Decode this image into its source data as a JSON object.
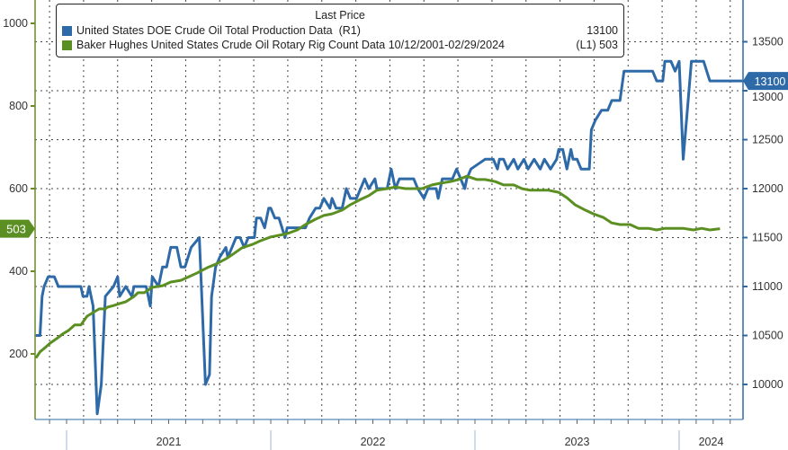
{
  "chart_data": {
    "type": "line",
    "title": "Last Price",
    "x_range": [
      2020.83,
      2024.33
    ],
    "x_tick_labels": [
      "2021",
      "2022",
      "2023",
      "2024"
    ],
    "left_axis": {
      "ticks": [
        200,
        400,
        600,
        800,
        1000
      ],
      "range": [
        100,
        1050
      ]
    },
    "right_axis": {
      "ticks": [
        10000,
        10500,
        11000,
        11500,
        12000,
        12500,
        13000,
        13500
      ],
      "range": [
        9650,
        13950
      ]
    },
    "series": [
      {
        "name": "United States DOE Crude Oil Total Production Data",
        "axis_tag": "(R1)",
        "last_value": "13100",
        "color": "#2e6aa8",
        "axis": "right",
        "x": [
          2020.85,
          2020.87,
          2020.88,
          2020.89,
          2020.91,
          2020.94,
          2020.96,
          2021.07,
          2021.08,
          2021.1,
          2021.11,
          2021.13,
          2021.15,
          2021.17,
          2021.19,
          2021.23,
          2021.25,
          2021.26,
          2021.29,
          2021.32,
          2021.33,
          2021.39,
          2021.41,
          2021.42,
          2021.45,
          2021.47,
          2021.49,
          2021.51,
          2021.54,
          2021.56,
          2021.58,
          2021.61,
          2021.65,
          2021.68,
          2021.7,
          2021.71,
          2021.73,
          2021.75,
          2021.78,
          2021.79,
          2021.81,
          2021.83,
          2021.85,
          2021.87,
          2021.89,
          2021.92,
          2021.93,
          2021.95,
          2021.97,
          2021.99,
          2022.0,
          2022.02,
          2022.04,
          2022.07,
          2022.08,
          2022.17,
          2022.19,
          2022.22,
          2022.24,
          2022.26,
          2022.29,
          2022.3,
          2022.32,
          2022.35,
          2022.37,
          2022.39,
          2022.42,
          2022.44,
          2022.46,
          2022.48,
          2022.51,
          2022.52,
          2022.54,
          2022.57,
          2022.59,
          2022.61,
          2022.63,
          2022.7,
          2022.72,
          2022.75,
          2022.77,
          2022.81,
          2022.82,
          2022.84,
          2022.89,
          2022.91,
          2022.93,
          2022.95,
          2022.96,
          2022.98,
          2023.05,
          2023.09,
          2023.11,
          2023.12,
          2023.14,
          2023.16,
          2023.19,
          2023.21,
          2023.24,
          2023.26,
          2023.29,
          2023.32,
          2023.34,
          2023.37,
          2023.4,
          2023.41,
          2023.43,
          2023.45,
          2023.47,
          2023.48,
          2023.5,
          2023.52,
          2023.56,
          2023.57,
          2023.59,
          2023.62,
          2023.65,
          2023.67,
          2023.71,
          2023.73,
          2023.87,
          2023.89,
          2023.92,
          2023.93,
          2023.96,
          2023.98,
          2024.0,
          2024.02,
          2024.04,
          2024.06,
          2024.12,
          2024.15,
          2024.31
        ],
        "values": [
          10500,
          10500,
          10900,
          11000,
          11100,
          11100,
          11000,
          11000,
          10900,
          10900,
          11000,
          10800,
          9700,
          10000,
          10900,
          11000,
          11100,
          10900,
          11000,
          10900,
          11000,
          11000,
          10800,
          11100,
          11000,
          11200,
          11200,
          11400,
          11400,
          11200,
          11200,
          11400,
          11500,
          10000,
          10100,
          10900,
          11200,
          11300,
          11400,
          11300,
          11400,
          11500,
          11500,
          11400,
          11500,
          11500,
          11700,
          11700,
          11600,
          11800,
          11800,
          11700,
          11700,
          11500,
          11600,
          11600,
          11700,
          11800,
          11800,
          11900,
          11800,
          11900,
          11800,
          11800,
          12000,
          11900,
          11900,
          12000,
          12100,
          12000,
          12100,
          12000,
          12000,
          12000,
          12200,
          12000,
          12100,
          12100,
          12000,
          11900,
          12000,
          12000,
          11900,
          12100,
          12100,
          12200,
          12100,
          12000,
          12100,
          12200,
          12300,
          12300,
          12200,
          12300,
          12300,
          12200,
          12300,
          12200,
          12300,
          12200,
          12300,
          12200,
          12300,
          12200,
          12300,
          12400,
          12400,
          12200,
          12400,
          12300,
          12300,
          12200,
          12200,
          12600,
          12700,
          12800,
          12800,
          12900,
          12900,
          13200,
          13200,
          13100,
          13100,
          13300,
          13300,
          13200,
          13300,
          12300,
          12800,
          13300,
          13300,
          13100,
          13100
        ]
      },
      {
        "name": "Baker Hughes United States Crude Oil Rotary Rig Count Data 10/12/2001-02/29/2024",
        "axis_tag": "(L1)",
        "last_value": "503",
        "color": "#5b8f22",
        "axis": "left",
        "x": [
          2020.85,
          2020.87,
          2020.89,
          2020.92,
          2020.96,
          2020.98,
          2021.01,
          2021.04,
          2021.07,
          2021.1,
          2021.13,
          2021.16,
          2021.19,
          2021.2,
          2021.23,
          2021.26,
          2021.29,
          2021.33,
          2021.35,
          2021.38,
          2021.42,
          2021.47,
          2021.51,
          2021.56,
          2021.6,
          2021.64,
          2021.69,
          2021.73,
          2021.78,
          2021.82,
          2021.86,
          2021.91,
          2021.95,
          2022.0,
          2022.04,
          2022.08,
          2022.13,
          2022.17,
          2022.22,
          2022.26,
          2022.3,
          2022.35,
          2022.39,
          2022.44,
          2022.48,
          2022.52,
          2022.57,
          2022.61,
          2022.66,
          2022.7,
          2022.74,
          2022.79,
          2022.83,
          2022.88,
          2022.92,
          2022.96,
          2023.01,
          2023.05,
          2023.1,
          2023.14,
          2023.19,
          2023.23,
          2023.27,
          2023.32,
          2023.36,
          2023.41,
          2023.45,
          2023.49,
          2023.54,
          2023.58,
          2023.63,
          2023.67,
          2023.71,
          2023.76,
          2023.8,
          2023.85,
          2023.89,
          2023.93,
          2023.98,
          2024.02,
          2024.07,
          2024.11,
          2024.15,
          2024.2
        ],
        "values": [
          190,
          205,
          213,
          226,
          240,
          248,
          257,
          270,
          270,
          291,
          300,
          309,
          309,
          313,
          317,
          322,
          326,
          339,
          348,
          348,
          361,
          365,
          374,
          378,
          387,
          396,
          409,
          417,
          430,
          443,
          457,
          465,
          474,
          483,
          487,
          491,
          500,
          513,
          526,
          535,
          539,
          548,
          561,
          574,
          583,
          596,
          600,
          604,
          600,
          600,
          600,
          609,
          613,
          617,
          622,
          630,
          622,
          622,
          617,
          609,
          609,
          600,
          596,
          596,
          596,
          591,
          578,
          561,
          548,
          539,
          530,
          517,
          513,
          513,
          504,
          504,
          500,
          504,
          504,
          504,
          500,
          504,
          500,
          503
        ]
      }
    ]
  }
}
